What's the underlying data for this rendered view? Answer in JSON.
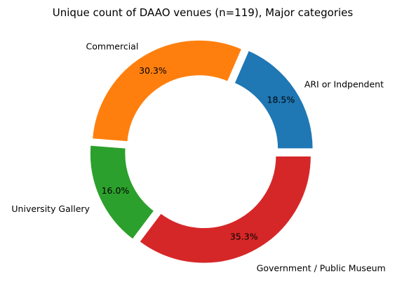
{
  "chart_data": {
    "type": "pie",
    "style": "donut",
    "title": "Unique count of DAAO venues (n=119), Major categories",
    "legend": "none",
    "slices": [
      {
        "label": "ARI or Indpendent",
        "percent": 18.5,
        "percent_label": "18.5%",
        "color": "#1f77b4"
      },
      {
        "label": "Commercial",
        "percent": 30.3,
        "percent_label": "30.3%",
        "color": "#ff7f0e"
      },
      {
        "label": "University Gallery",
        "percent": 16.0,
        "percent_label": "16.0%",
        "color": "#2ca02c"
      },
      {
        "label": "Government / Public Museum",
        "percent": 35.3,
        "percent_label": "35.3%",
        "color": "#d62728"
      }
    ]
  }
}
